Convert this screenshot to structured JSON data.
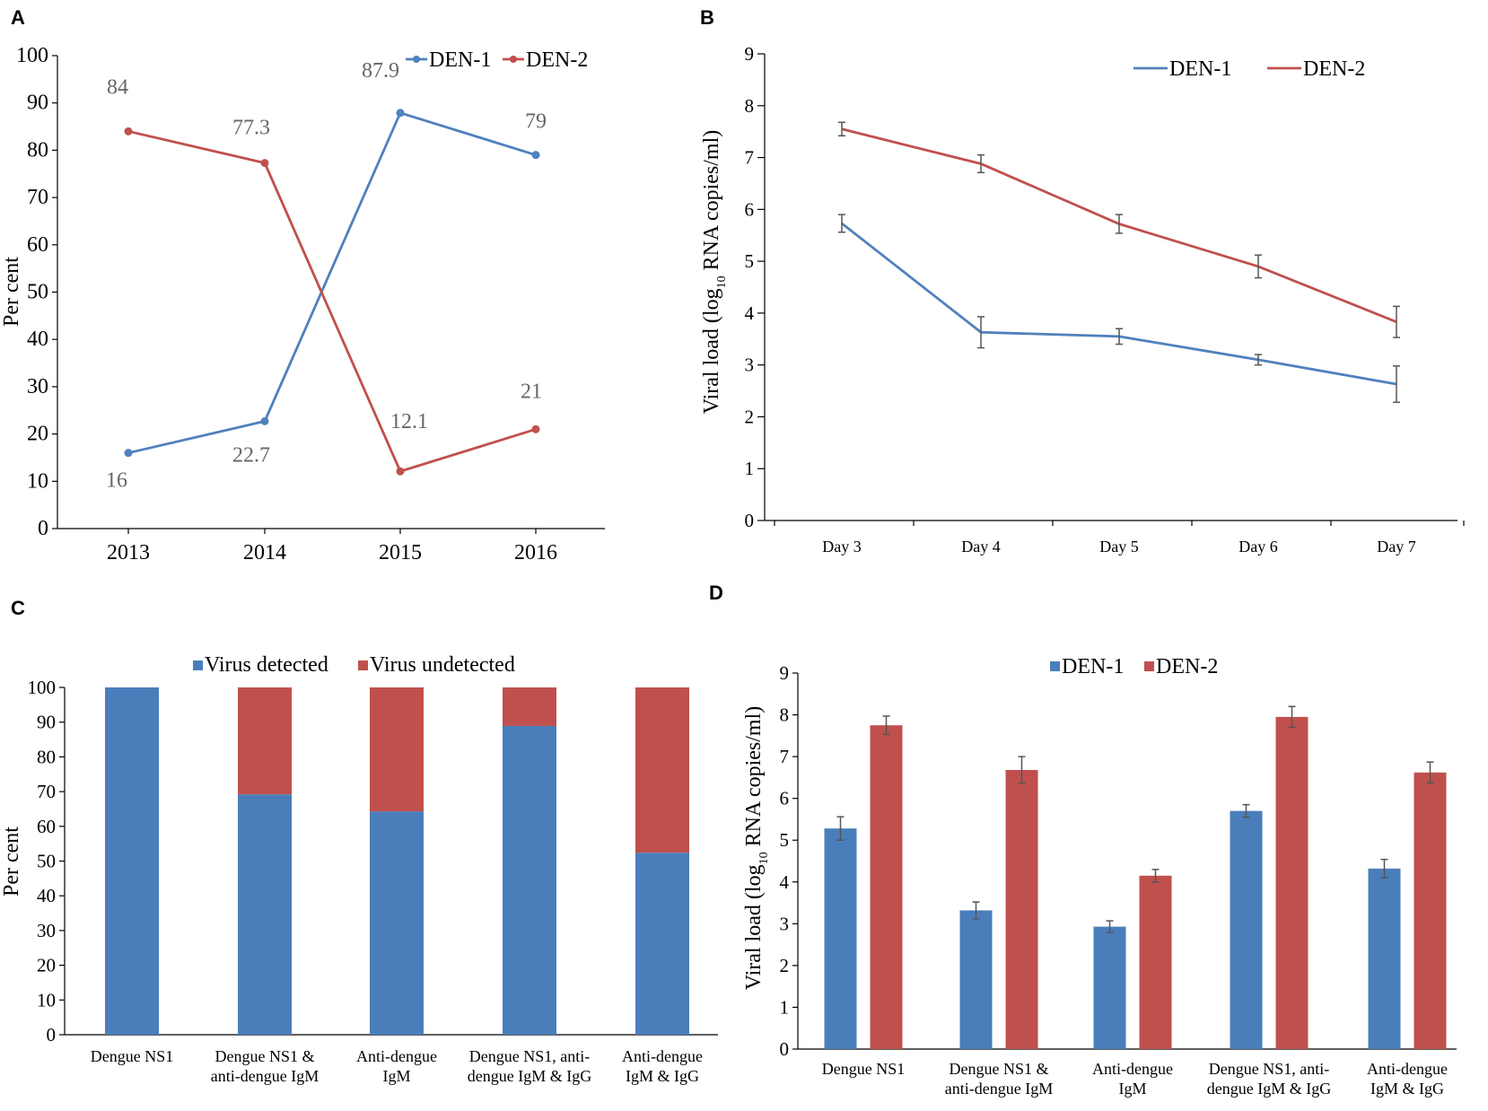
{
  "colors": {
    "den1": "#4a7ebb",
    "den2": "#c0504d",
    "line1": "#4f81bd",
    "errorbar": "#555555"
  },
  "chart_data": [
    {
      "panel": "A",
      "type": "line",
      "categories": [
        "2013",
        "2014",
        "2015",
        "2016"
      ],
      "series": [
        {
          "name": "DEN-1",
          "values": [
            16,
            22.7,
            87.9,
            79
          ],
          "labels": [
            "16",
            "22.7",
            "87.9",
            "79"
          ]
        },
        {
          "name": "DEN-2",
          "values": [
            84,
            77.3,
            12.1,
            21
          ],
          "labels": [
            "84",
            "77.3",
            "12.1",
            "21"
          ]
        }
      ],
      "ylabel": "Per cent",
      "ylim": [
        0,
        100
      ],
      "yticks": [
        "0",
        "10",
        "20",
        "30",
        "40",
        "50",
        "60",
        "70",
        "80",
        "90",
        "100"
      ],
      "legend": [
        "DEN-1",
        "DEN-2"
      ]
    },
    {
      "panel": "B",
      "type": "line",
      "categories": [
        "Day 3",
        "Day 4",
        "Day 5",
        "Day 6",
        "Day 7"
      ],
      "series": [
        {
          "name": "DEN-1",
          "values": [
            5.73,
            3.63,
            3.55,
            3.1,
            2.63
          ],
          "errors": [
            0.17,
            0.3,
            0.15,
            0.1,
            0.35
          ]
        },
        {
          "name": "DEN-2",
          "values": [
            7.55,
            6.88,
            5.72,
            4.9,
            3.83
          ],
          "errors": [
            0.13,
            0.17,
            0.18,
            0.22,
            0.3
          ]
        }
      ],
      "ylabel_prefix": "Viral load (log",
      "ylabel_sub": "10",
      "ylabel_suffix": " RNA copies/ml)",
      "ylim": [
        0,
        9
      ],
      "yticks": [
        "0",
        "1",
        "2",
        "3",
        "4",
        "5",
        "6",
        "7",
        "8",
        "9"
      ],
      "legend": [
        "DEN-1",
        "DEN-2"
      ]
    },
    {
      "panel": "C",
      "type": "bar",
      "stacked": true,
      "categories": [
        [
          "Dengue NS1"
        ],
        [
          "Dengue NS1 &",
          "anti-dengue IgM"
        ],
        [
          "Anti-dengue",
          "IgM"
        ],
        [
          "Dengue NS1, anti-",
          "dengue IgM & IgG"
        ],
        [
          "Anti-dengue",
          "IgM & IgG"
        ]
      ],
      "series": [
        {
          "name": "Virus detected",
          "values": [
            100,
            69.2,
            64.3,
            88.9,
            52.4
          ]
        },
        {
          "name": "Virus  undetected",
          "values": [
            0,
            30.8,
            35.7,
            11.1,
            47.6
          ]
        }
      ],
      "ylabel": "Per cent",
      "ylim": [
        0,
        100
      ],
      "yticks": [
        "0",
        "10",
        "20",
        "30",
        "40",
        "50",
        "60",
        "70",
        "80",
        "90",
        "100"
      ],
      "legend": [
        "Virus detected",
        "Virus  undetected"
      ]
    },
    {
      "panel": "D",
      "type": "bar",
      "categories": [
        [
          "Dengue NS1"
        ],
        [
          "Dengue NS1 &",
          "anti-dengue IgM"
        ],
        [
          "Anti-dengue",
          "IgM"
        ],
        [
          "Dengue NS1, anti-",
          "dengue IgM & IgG"
        ],
        [
          "Anti-dengue",
          "IgM & IgG"
        ]
      ],
      "series": [
        {
          "name": "DEN-1",
          "values": [
            5.28,
            3.32,
            2.93,
            5.7,
            4.32
          ],
          "errors": [
            0.28,
            0.2,
            0.14,
            0.15,
            0.22
          ]
        },
        {
          "name": "DEN-2",
          "values": [
            7.75,
            6.68,
            4.15,
            7.95,
            6.62
          ],
          "errors": [
            0.22,
            0.32,
            0.15,
            0.25,
            0.25
          ]
        }
      ],
      "ylabel_prefix": "Viral load (log",
      "ylabel_sub": "10",
      "ylabel_suffix": " RNA copies/ml)",
      "ylim": [
        0,
        9
      ],
      "yticks": [
        "0",
        "1",
        "2",
        "3",
        "4",
        "5",
        "6",
        "7",
        "8",
        "9"
      ],
      "legend": [
        "DEN-1",
        "DEN-2"
      ]
    }
  ]
}
